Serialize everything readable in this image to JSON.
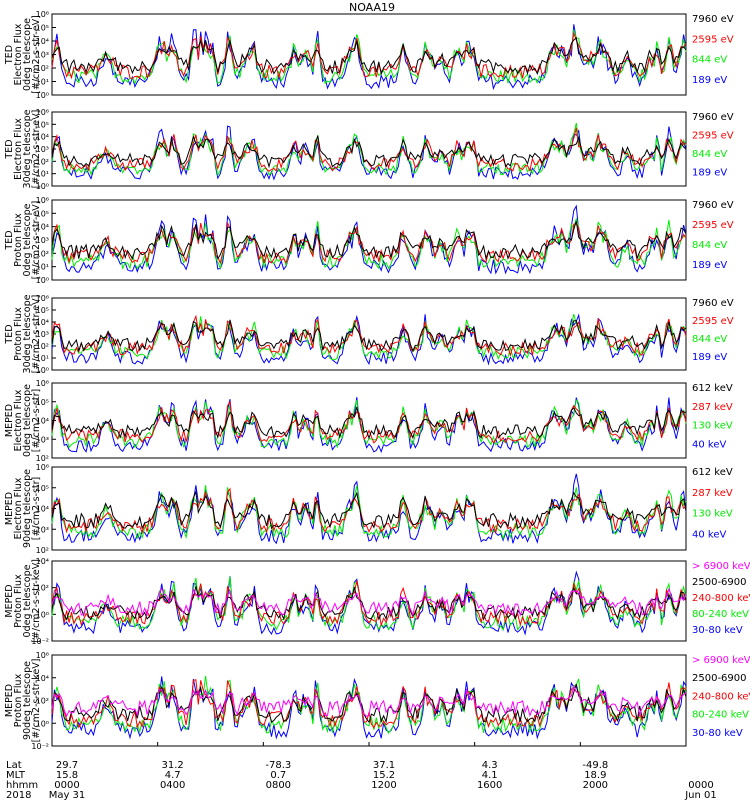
{
  "title": "NOAA19",
  "colors": {
    "blue": "#0000ff",
    "red": "#ff0000",
    "green": "#00ee00",
    "black": "#000000",
    "magenta": "#ff00ff"
  },
  "chart_data": {
    "type": "line",
    "x_range": [
      "2018-05-31 00:00",
      "2018-06-01 00:00"
    ],
    "panels": [
      {
        "ylabel": [
          "TED",
          "Electron Flux",
          "0deg telescope",
          "[#/cm2-s-str-eV]"
        ],
        "yticks": [
          "10⁰",
          "10¹",
          "10²",
          "10³",
          "10⁴",
          "10⁵",
          "10⁶"
        ],
        "ylim_exp": [
          0,
          6
        ],
        "legend": [
          {
            "label": "7960 eV",
            "color": "#000000"
          },
          {
            "label": "2595 eV",
            "color": "#ff0000"
          },
          {
            "label": "844 eV",
            "color": "#00ee00"
          },
          {
            "label": "189 eV",
            "color": "#0000ff"
          }
        ]
      },
      {
        "ylabel": [
          "TED",
          "Electron Flux",
          "30deg telescope",
          "[#/cm2-s-str-eV]"
        ],
        "yticks": [
          "10⁰",
          "10¹",
          "10²",
          "10³",
          "10⁴",
          "10⁵",
          "10⁶"
        ],
        "ylim_exp": [
          0,
          6
        ],
        "legend": [
          {
            "label": "7960 eV",
            "color": "#000000"
          },
          {
            "label": "2595 eV",
            "color": "#ff0000"
          },
          {
            "label": "844 eV",
            "color": "#00ee00"
          },
          {
            "label": "189 eV",
            "color": "#0000ff"
          }
        ]
      },
      {
        "ylabel": [
          "TED",
          "Proton Flux",
          "0deg telescope",
          "[#/cm2-s-str-eV]"
        ],
        "yticks": [
          "10⁰",
          "10¹",
          "10²",
          "10³",
          "10⁴",
          "10⁵",
          "10⁶"
        ],
        "ylim_exp": [
          0,
          6
        ],
        "legend": [
          {
            "label": "7960 eV",
            "color": "#000000"
          },
          {
            "label": "2595 eV",
            "color": "#ff0000"
          },
          {
            "label": "844 eV",
            "color": "#00ee00"
          },
          {
            "label": "189 eV",
            "color": "#0000ff"
          }
        ]
      },
      {
        "ylabel": [
          "TED",
          "Proton Flux",
          "30deg telescope",
          "[#/cm2-s-str-eV]"
        ],
        "yticks": [
          "10⁰",
          "10¹",
          "10²",
          "10³",
          "10⁴",
          "10⁵",
          "10⁶"
        ],
        "ylim_exp": [
          0,
          6
        ],
        "legend": [
          {
            "label": "7960 eV",
            "color": "#000000"
          },
          {
            "label": "2595 eV",
            "color": "#ff0000"
          },
          {
            "label": "844 eV",
            "color": "#00ee00"
          },
          {
            "label": "189 eV",
            "color": "#0000ff"
          }
        ]
      },
      {
        "ylabel": [
          "MEPED",
          "Electron Flux",
          "0deg telescope",
          "[#/cm2-s-str]"
        ],
        "yticks": [
          "10²",
          "10³",
          "10⁴",
          "10⁵",
          "10⁶"
        ],
        "ylim_exp": [
          2,
          6
        ],
        "legend": [
          {
            "label": "612 keV",
            "color": "#000000"
          },
          {
            "label": "287 keV",
            "color": "#ff0000"
          },
          {
            "label": "130 keV",
            "color": "#00ee00"
          },
          {
            "label": "40 keV",
            "color": "#0000ff"
          }
        ]
      },
      {
        "ylabel": [
          "MEPED",
          "Electron Flux",
          "90deg telescope",
          "[#/cm2-s-str]"
        ],
        "yticks": [
          "10²",
          "10³",
          "10⁴",
          "10⁵",
          "10⁶"
        ],
        "ylim_exp": [
          2,
          6
        ],
        "legend": [
          {
            "label": "612 keV",
            "color": "#000000"
          },
          {
            "label": "287 keV",
            "color": "#ff0000"
          },
          {
            "label": "130 keV",
            "color": "#00ee00"
          },
          {
            "label": "40 keV",
            "color": "#0000ff"
          }
        ]
      },
      {
        "ylabel": [
          "MEPED",
          "Proton Flux",
          "0deg telescope",
          "[#/cm2-s-str-keV]"
        ],
        "yticks": [
          "10⁻²",
          "10⁰",
          "10²",
          "10⁴"
        ],
        "ylim_exp": [
          -2,
          5
        ],
        "legend": [
          {
            "label": "> 6900 keV",
            "color": "#ff00ff"
          },
          {
            "label": "2500-6900",
            "color": "#000000"
          },
          {
            "label": "240-800 keV",
            "color": "#ff0000"
          },
          {
            "label": "80-240 keV",
            "color": "#00ee00"
          },
          {
            "label": "30-80 keV",
            "color": "#0000ff"
          }
        ]
      },
      {
        "ylabel": [
          "MEPED",
          "Proton Flux",
          "90deg telescope",
          "[#/cm2-s-str-keV]"
        ],
        "yticks": [
          "10⁻²",
          "10⁰",
          "10²",
          "10⁴",
          "10⁶"
        ],
        "ylim_exp": [
          -2,
          6
        ],
        "legend": [
          {
            "label": "> 6900 keV",
            "color": "#ff00ff"
          },
          {
            "label": "2500-6900",
            "color": "#000000"
          },
          {
            "label": "240-800 keV",
            "color": "#ff0000"
          },
          {
            "label": "80-240 keV",
            "color": "#00ee00"
          },
          {
            "label": "30-80 keV",
            "color": "#0000ff"
          }
        ]
      }
    ],
    "x_axis": {
      "row_labels": [
        "Lat",
        "MLT",
        "hhmm",
        "2018"
      ],
      "columns": [
        {
          "lat": "29.7",
          "mlt": "15.8",
          "hhmm": "0000",
          "date": "May 31"
        },
        {
          "lat": "31.2",
          "mlt": "4.7",
          "hhmm": "0400",
          "date": ""
        },
        {
          "lat": "-78.3",
          "mlt": "0.7",
          "hhmm": "0800",
          "date": ""
        },
        {
          "lat": "37.1",
          "mlt": "15.2",
          "hhmm": "1200",
          "date": ""
        },
        {
          "lat": "4.3",
          "mlt": "4.1",
          "hhmm": "1600",
          "date": ""
        },
        {
          "lat": "-49.8",
          "mlt": "18.9",
          "hhmm": "2000",
          "date": ""
        },
        {
          "lat": "",
          "mlt": "",
          "hhmm": "0000",
          "date": "Jun 01"
        }
      ]
    }
  }
}
